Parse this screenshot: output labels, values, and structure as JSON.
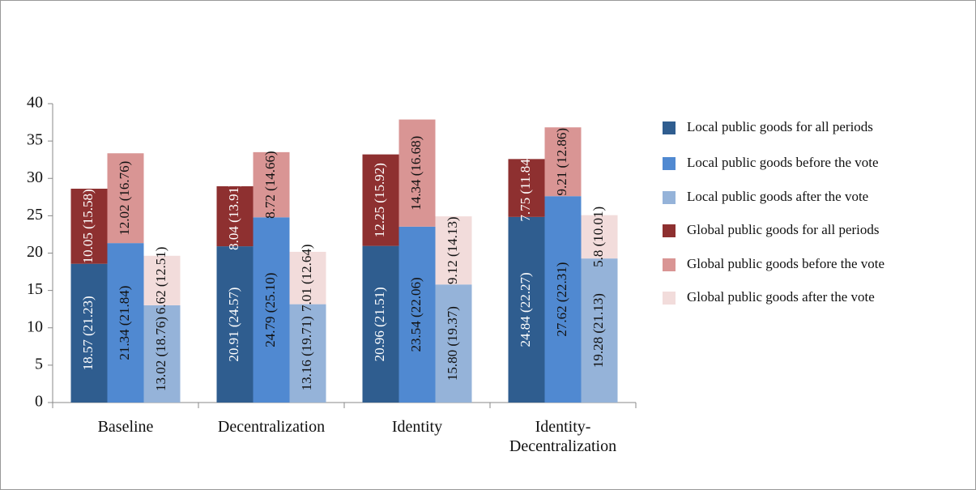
{
  "chart_data": {
    "type": "stacked_bar",
    "categories": [
      "Baseline",
      "Decentralization",
      "Identity",
      "Identity-Decentralization"
    ],
    "ylim": [
      0,
      40
    ],
    "yticks": [
      0,
      5,
      10,
      15,
      20,
      25,
      30,
      35,
      40
    ],
    "legend": "right",
    "series": [
      {
        "name": "Local public goods for all periods",
        "color": "#2f5d8f",
        "stack": 0,
        "values": [
          18.57,
          20.91,
          20.96,
          24.84
        ],
        "value_labels": [
          "18.57 (21.23)",
          "20.91 (24.57)",
          "20.96 (21.51)",
          "24.84 (22.27)"
        ]
      },
      {
        "name": "Local public goods before the vote",
        "color": "#5089d1",
        "stack": 1,
        "values": [
          21.34,
          24.79,
          23.54,
          27.62
        ],
        "value_labels": [
          "21.34 (21.84)",
          "24.79 (25.10)",
          "23.54 (22.06)",
          "27.62 (22.31)"
        ]
      },
      {
        "name": "Local public goods after the vote",
        "color": "#95b3d9",
        "stack": 2,
        "values": [
          13.02,
          13.16,
          15.8,
          19.28
        ],
        "value_labels": [
          "13.02 (18.76)",
          "13.16 (19.71)",
          "15.80 (19.37)",
          "19.28 (21.13)"
        ]
      },
      {
        "name": "Global public goods for all periods",
        "color": "#8e3030",
        "stack": 0,
        "values": [
          10.05,
          8.04,
          12.25,
          7.75
        ],
        "value_labels": [
          "10.05 (15.58)",
          "8.04 (13.91)",
          "12.25 (15.92)",
          "7.75 (11.84)"
        ]
      },
      {
        "name": "Global public goods before the vote",
        "color": "#d99594",
        "stack": 1,
        "values": [
          12.02,
          8.72,
          14.34,
          9.21
        ],
        "value_labels": [
          "12.02 (16.76)",
          "8.72 (14.66)",
          "14.34 (16.68)",
          "9.21 (12.86)"
        ]
      },
      {
        "name": "Global public goods after the vote",
        "color": "#f2dcdb",
        "stack": 2,
        "values": [
          6.62,
          7.01,
          9.12,
          5.8
        ],
        "value_labels": [
          "6.62 (12.51)",
          "7.01 (12.64)",
          "9.12 (14.13)",
          "5.8 (10.01)"
        ]
      }
    ]
  }
}
